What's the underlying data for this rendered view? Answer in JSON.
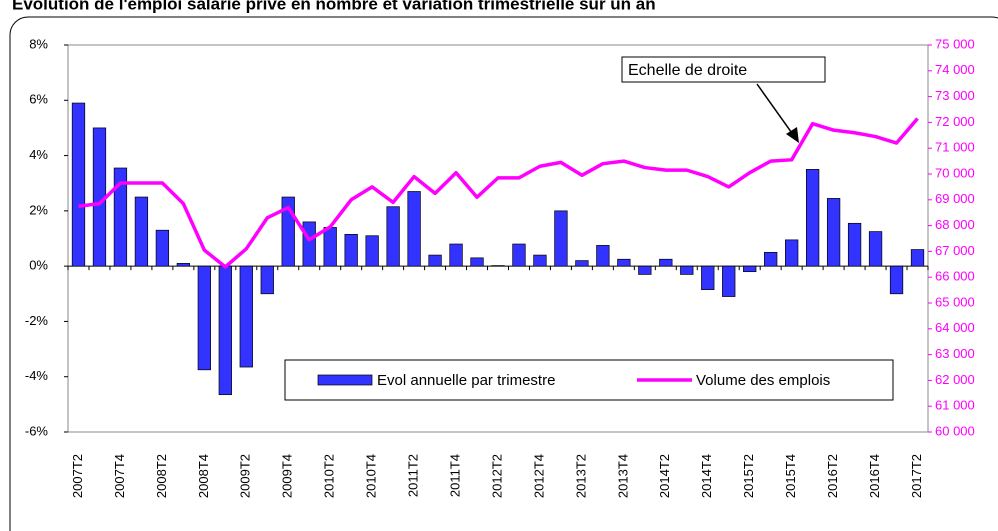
{
  "chart_data": {
    "type": "bar",
    "title": "Evolution de l'emploi salarié privé en nombre et variation trimestrielle sur un an",
    "annotation": "Echelle de droite",
    "categories": [
      "2007T2",
      null,
      "2007T4",
      null,
      "2008T2",
      null,
      "2008T4",
      null,
      "2009T2",
      null,
      "2009T4",
      null,
      "2010T2",
      null,
      "2010T4",
      null,
      "2011T2",
      null,
      "2011T4",
      null,
      "2012T2",
      null,
      "2012T4",
      null,
      "2013T2",
      null,
      "2013T4",
      null,
      "2014T2",
      null,
      "2014T4",
      null,
      "2015T2",
      null,
      "2015T4",
      null,
      "2016T2",
      null,
      "2016T4",
      null,
      "2017T2"
    ],
    "series": [
      {
        "name": "Evol annuelle par trimestre",
        "type": "bar",
        "color": "#3333ff",
        "values": [
          5.9,
          5.0,
          3.55,
          2.5,
          1.3,
          0.1,
          -3.75,
          -4.65,
          -3.65,
          -1.0,
          2.5,
          1.6,
          1.4,
          1.15,
          1.1,
          2.15,
          2.7,
          0.4,
          0.8,
          0.3,
          0.02,
          0.8,
          0.4,
          2.0,
          0.2,
          0.75,
          0.25,
          -0.3,
          0.25,
          -0.3,
          -0.85,
          -1.1,
          -0.2,
          0.5,
          0.95,
          3.5,
          2.45,
          1.55,
          1.25,
          -1.0,
          0.6
        ]
      },
      {
        "name": "Volume des emplois",
        "type": "line",
        "axis": "y2",
        "color": "#ff00ff",
        "values": [
          68750,
          68850,
          69650,
          69650,
          69650,
          68850,
          67050,
          66400,
          67100,
          68300,
          68700,
          67450,
          67950,
          69000,
          69500,
          68900,
          69900,
          69250,
          70050,
          69100,
          69850,
          69850,
          70300,
          70450,
          69950,
          70400,
          70500,
          70250,
          70150,
          70150,
          69900,
          69500,
          70050,
          70500,
          70550,
          71950,
          71700,
          71600,
          71450,
          71200,
          72150
        ]
      }
    ],
    "ylim": [
      -6,
      8
    ],
    "yticks": [
      {
        "value": -6,
        "label": "-6%"
      },
      {
        "value": -4,
        "label": "-4%"
      },
      {
        "value": -2,
        "label": "-2%"
      },
      {
        "value": 0,
        "label": "0%"
      },
      {
        "value": 2,
        "label": "2%"
      },
      {
        "value": 4,
        "label": "4%"
      },
      {
        "value": 6,
        "label": "6%"
      },
      {
        "value": 8,
        "label": "8%"
      }
    ],
    "y2lim": [
      60000,
      75000
    ],
    "y2ticks": [
      {
        "value": 60000,
        "label": "60 000"
      },
      {
        "value": 61000,
        "label": "61 000"
      },
      {
        "value": 62000,
        "label": "62 000"
      },
      {
        "value": 63000,
        "label": "63 000"
      },
      {
        "value": 64000,
        "label": "64 000"
      },
      {
        "value": 65000,
        "label": "65 000"
      },
      {
        "value": 66000,
        "label": "66 000"
      },
      {
        "value": 67000,
        "label": "67 000"
      },
      {
        "value": 68000,
        "label": "68 000"
      },
      {
        "value": 69000,
        "label": "69 000"
      },
      {
        "value": 70000,
        "label": "70 000"
      },
      {
        "value": 71000,
        "label": "71 000"
      },
      {
        "value": 72000,
        "label": "72 000"
      },
      {
        "value": 73000,
        "label": "73 000"
      },
      {
        "value": 74000,
        "label": "74 000"
      },
      {
        "value": 75000,
        "label": "75 000"
      }
    ],
    "y2tick_color": "#ff00ff",
    "grid": false
  }
}
